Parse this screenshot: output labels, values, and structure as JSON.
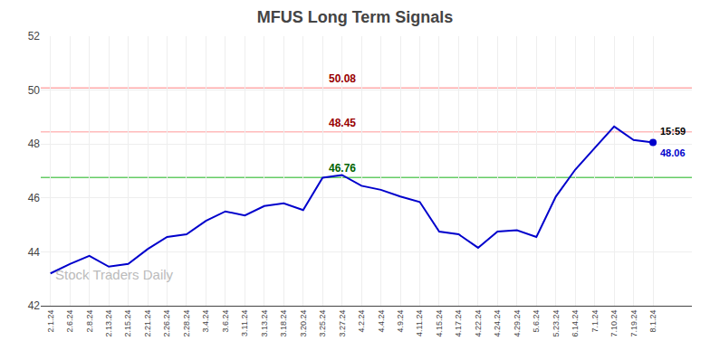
{
  "chart_data": {
    "type": "line",
    "title": "MFUS Long Term Signals",
    "watermark": "Stock Traders Daily",
    "watermark_color": "#bbbbbb",
    "categories": [
      "2.1.24",
      "2.6.24",
      "2.8.24",
      "2.13.24",
      "2.15.24",
      "2.21.24",
      "2.26.24",
      "2.28.24",
      "3.4.24",
      "3.6.24",
      "3.11.24",
      "3.13.24",
      "3.18.24",
      "3.20.24",
      "3.25.24",
      "3.27.24",
      "4.2.24",
      "4.4.24",
      "4.9.24",
      "4.11.24",
      "4.15.24",
      "4.17.24",
      "4.22.24",
      "4.24.24",
      "4.29.24",
      "5.6.24",
      "5.23.24",
      "6.14.24",
      "7.1.24",
      "7.10.24",
      "7.19.24",
      "8.1.24"
    ],
    "values": [
      43.2,
      43.55,
      43.85,
      43.45,
      43.55,
      44.1,
      44.55,
      44.65,
      45.15,
      45.5,
      45.35,
      45.7,
      45.8,
      45.55,
      46.75,
      46.85,
      46.45,
      46.3,
      46.05,
      45.85,
      44.75,
      44.65,
      44.15,
      44.75,
      44.8,
      44.55,
      46.05,
      47.05,
      47.85,
      48.65,
      48.15,
      48.06
    ],
    "color": "#0000cc",
    "marker": "last",
    "hlines": [
      {
        "value": 50.08,
        "label": "50.08",
        "color": "#ffaaaa",
        "label_color": "#990000"
      },
      {
        "value": 48.45,
        "label": "48.45",
        "color": "#ffbbbb",
        "label_color": "#990000"
      },
      {
        "value": 46.76,
        "label": "46.76",
        "color": "#66cc66",
        "label_color": "#006400"
      }
    ],
    "annotations": [
      "15:59",
      "48.06"
    ],
    "ylim": [
      42,
      52
    ],
    "yticks": [
      42,
      44,
      46,
      48,
      50,
      52
    ],
    "grid": true
  }
}
